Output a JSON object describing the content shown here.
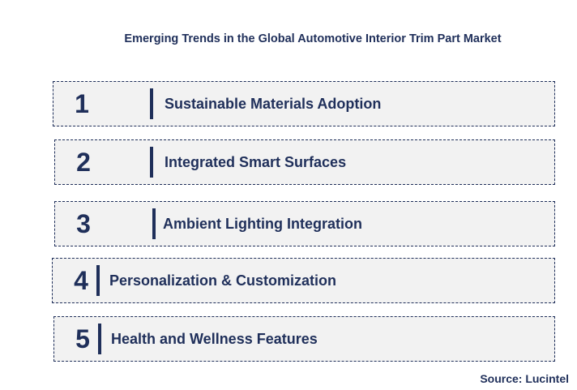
{
  "title": "Emerging Trends in the Global Automotive Interior Trim Part Market",
  "trends": [
    {
      "number": "1",
      "label": "Sustainable Materials Adoption"
    },
    {
      "number": "2",
      "label": "Integrated Smart Surfaces"
    },
    {
      "number": "3",
      "label": "Ambient Lighting Integration"
    },
    {
      "number": "4",
      "label": "Personalization & Customization"
    },
    {
      "number": "5",
      "label": "Health and Wellness Features"
    }
  ],
  "source": "Source: Lucintel",
  "colors": {
    "text": "#1f2f5a",
    "box_fill": "#f2f2f2",
    "box_border": "#1f2f5a"
  }
}
